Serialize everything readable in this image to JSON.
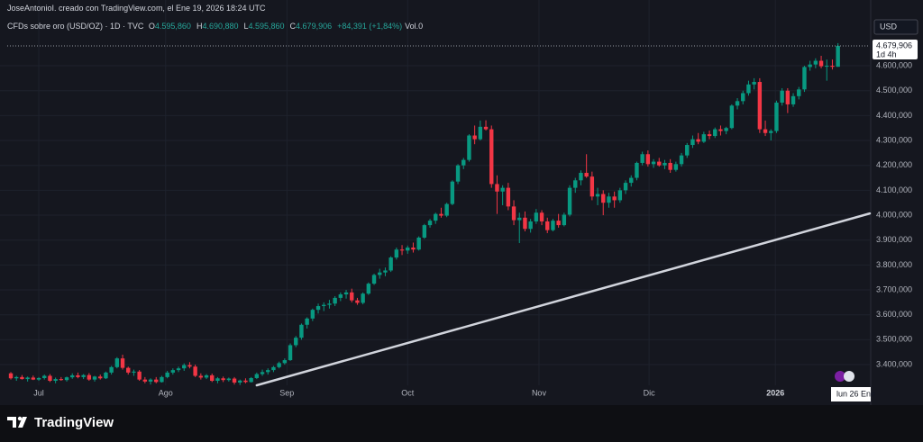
{
  "header": {
    "credit": "JoseAntonioI. creado con TradingView.com, el Ene 19, 2026 18:24 UTC",
    "symbol": "CFDs sobre oro (USD/OZ) · 1D · TVC",
    "ohlc_legend": [
      {
        "key": "O",
        "text": "4.595,860"
      },
      {
        "key": "H",
        "text": "4.690,880"
      },
      {
        "key": "L",
        "text": "4.595,860"
      },
      {
        "key": "C",
        "text": "4.679,906"
      }
    ],
    "change": "+84,391 (+1,84%)",
    "volume": "Vol.0",
    "currency": "USD"
  },
  "chart_data": {
    "type": "candlestick",
    "up_color": "#089981",
    "down_color": "#f23645",
    "xlim": [
      -0.65,
      153.7
    ],
    "ylim": [
      3317,
      4799
    ],
    "xticks": [
      {
        "value": 5,
        "label": "Jul"
      },
      {
        "value": 27.7,
        "label": "Ago"
      },
      {
        "value": 49.4,
        "label": "Sep"
      },
      {
        "value": 71,
        "label": "Oct"
      },
      {
        "value": 94.5,
        "label": "Nov"
      },
      {
        "value": 114.2,
        "label": "Dic"
      },
      {
        "value": 136.8,
        "label": "2026"
      }
    ],
    "yticks": [
      {
        "value": 3400,
        "label": "3.400,000"
      },
      {
        "value": 3500,
        "label": "3.500,000"
      },
      {
        "value": 3600,
        "label": "3.600,000"
      },
      {
        "value": 3700,
        "label": "3.700,000"
      },
      {
        "value": 3800,
        "label": "3.800,000"
      },
      {
        "value": 3900,
        "label": "3.900,000"
      },
      {
        "value": 4000,
        "label": "4.000,000"
      },
      {
        "value": 4100,
        "label": "4.100,000"
      },
      {
        "value": 4200,
        "label": "4.200,000"
      },
      {
        "value": 4300,
        "label": "4.300,000"
      },
      {
        "value": 4400,
        "label": "4.400,000"
      },
      {
        "value": 4500,
        "label": "4.500,000"
      },
      {
        "value": 4600,
        "label": "4.600,000"
      }
    ],
    "grid": true,
    "last_price": {
      "value": 4679.906,
      "label": "4.679,906",
      "countdown": "1d 4h"
    },
    "trendline": {
      "x": [
        44,
        153.7
      ],
      "y": [
        3317,
        4007
      ],
      "color": "#d1d4dc"
    },
    "crosshair_label": "lun 26 Ene",
    "ohlc": [
      [
        3365,
        3370,
        3340,
        3345
      ],
      [
        3345,
        3355,
        3335,
        3350
      ],
      [
        3350,
        3358,
        3340,
        3342
      ],
      [
        3342,
        3352,
        3332,
        3348
      ],
      [
        3348,
        3356,
        3338,
        3340
      ],
      [
        3340,
        3350,
        3335,
        3346
      ],
      [
        3346,
        3360,
        3340,
        3355
      ],
      [
        3355,
        3362,
        3330,
        3335
      ],
      [
        3335,
        3348,
        3325,
        3342
      ],
      [
        3342,
        3350,
        3335,
        3338
      ],
      [
        3338,
        3352,
        3332,
        3349
      ],
      [
        3349,
        3365,
        3343,
        3357
      ],
      [
        3357,
        3368,
        3345,
        3350
      ],
      [
        3350,
        3362,
        3342,
        3358
      ],
      [
        3358,
        3366,
        3335,
        3340
      ],
      [
        3340,
        3355,
        3332,
        3352
      ],
      [
        3352,
        3360,
        3340,
        3345
      ],
      [
        3345,
        3372,
        3342,
        3368
      ],
      [
        3368,
        3395,
        3360,
        3390
      ],
      [
        3390,
        3430,
        3385,
        3425
      ],
      [
        3425,
        3440,
        3380,
        3387
      ],
      [
        3387,
        3392,
        3360,
        3368
      ],
      [
        3368,
        3380,
        3355,
        3372
      ],
      [
        3372,
        3378,
        3335,
        3340
      ],
      [
        3340,
        3350,
        3325,
        3332
      ],
      [
        3332,
        3345,
        3320,
        3340
      ],
      [
        3340,
        3350,
        3325,
        3330
      ],
      [
        3330,
        3355,
        3328,
        3350
      ],
      [
        3350,
        3375,
        3345,
        3368
      ],
      [
        3368,
        3385,
        3360,
        3378
      ],
      [
        3378,
        3392,
        3370,
        3385
      ],
      [
        3385,
        3405,
        3375,
        3398
      ],
      [
        3398,
        3410,
        3385,
        3392
      ],
      [
        3392,
        3400,
        3350,
        3355
      ],
      [
        3355,
        3365,
        3340,
        3348
      ],
      [
        3348,
        3362,
        3342,
        3357
      ],
      [
        3357,
        3364,
        3330,
        3335
      ],
      [
        3335,
        3350,
        3325,
        3345
      ],
      [
        3345,
        3352,
        3330,
        3338
      ],
      [
        3338,
        3348,
        3332,
        3344
      ],
      [
        3344,
        3350,
        3320,
        3328
      ],
      [
        3328,
        3340,
        3318,
        3336
      ],
      [
        3336,
        3345,
        3325,
        3330
      ],
      [
        3330,
        3350,
        3328,
        3346
      ],
      [
        3346,
        3368,
        3342,
        3362
      ],
      [
        3362,
        3380,
        3355,
        3370
      ],
      [
        3370,
        3385,
        3360,
        3378
      ],
      [
        3378,
        3395,
        3370,
        3390
      ],
      [
        3390,
        3412,
        3385,
        3406
      ],
      [
        3406,
        3425,
        3400,
        3418
      ],
      [
        3418,
        3485,
        3415,
        3478
      ],
      [
        3478,
        3515,
        3470,
        3508
      ],
      [
        3508,
        3565,
        3500,
        3560
      ],
      [
        3560,
        3590,
        3545,
        3585
      ],
      [
        3585,
        3625,
        3575,
        3620
      ],
      [
        3620,
        3645,
        3605,
        3635
      ],
      [
        3635,
        3650,
        3615,
        3640
      ],
      [
        3640,
        3660,
        3625,
        3645
      ],
      [
        3645,
        3675,
        3635,
        3668
      ],
      [
        3668,
        3690,
        3655,
        3682
      ],
      [
        3682,
        3700,
        3665,
        3690
      ],
      [
        3690,
        3705,
        3650,
        3658
      ],
      [
        3658,
        3668,
        3640,
        3648
      ],
      [
        3648,
        3690,
        3642,
        3685
      ],
      [
        3685,
        3730,
        3680,
        3725
      ],
      [
        3725,
        3765,
        3720,
        3760
      ],
      [
        3760,
        3785,
        3745,
        3770
      ],
      [
        3770,
        3790,
        3755,
        3778
      ],
      [
        3778,
        3835,
        3772,
        3830
      ],
      [
        3830,
        3870,
        3822,
        3862
      ],
      [
        3862,
        3880,
        3840,
        3858
      ],
      [
        3858,
        3878,
        3845,
        3870
      ],
      [
        3870,
        3890,
        3850,
        3862
      ],
      [
        3862,
        3915,
        3858,
        3910
      ],
      [
        3910,
        3965,
        3905,
        3960
      ],
      [
        3960,
        3985,
        3950,
        3978
      ],
      [
        3978,
        4010,
        3965,
        4005
      ],
      [
        4005,
        4030,
        3990,
        3998
      ],
      [
        3998,
        4050,
        3992,
        4045
      ],
      [
        4045,
        4140,
        4040,
        4135
      ],
      [
        4135,
        4205,
        4125,
        4200
      ],
      [
        4200,
        4230,
        4185,
        4222
      ],
      [
        4222,
        4325,
        4215,
        4320
      ],
      [
        4320,
        4360,
        4285,
        4305
      ],
      [
        4305,
        4380,
        4300,
        4355
      ],
      [
        4355,
        4381,
        4340,
        4345
      ],
      [
        4345,
        4360,
        4110,
        4125
      ],
      [
        4125,
        4160,
        4005,
        4095
      ],
      [
        4095,
        4120,
        4040,
        4110
      ],
      [
        4110,
        4130,
        4020,
        4035
      ],
      [
        4035,
        4060,
        3960,
        3980
      ],
      [
        3980,
        4010,
        3888,
        3990
      ],
      [
        3990,
        4015,
        3935,
        3945
      ],
      [
        3945,
        3985,
        3930,
        3975
      ],
      [
        3975,
        4025,
        3965,
        4010
      ],
      [
        4010,
        4020,
        3960,
        3975
      ],
      [
        3975,
        3990,
        3928,
        3940
      ],
      [
        3940,
        3985,
        3935,
        3978
      ],
      [
        3978,
        4005,
        3950,
        3960
      ],
      [
        3960,
        4010,
        3955,
        4002
      ],
      [
        4002,
        4120,
        3995,
        4110
      ],
      [
        4110,
        4150,
        4090,
        4140
      ],
      [
        4140,
        4180,
        4120,
        4170
      ],
      [
        4170,
        4245,
        4150,
        4155
      ],
      [
        4155,
        4175,
        4060,
        4075
      ],
      [
        4075,
        4110,
        4040,
        4085
      ],
      [
        4085,
        4100,
        4000,
        4050
      ],
      [
        4050,
        4090,
        4030,
        4075
      ],
      [
        4075,
        4095,
        4030,
        4060
      ],
      [
        4060,
        4110,
        4050,
        4100
      ],
      [
        4100,
        4140,
        4085,
        4130
      ],
      [
        4130,
        4160,
        4115,
        4150
      ],
      [
        4150,
        4215,
        4140,
        4210
      ],
      [
        4210,
        4255,
        4200,
        4245
      ],
      [
        4245,
        4260,
        4195,
        4205
      ],
      [
        4205,
        4225,
        4190,
        4215
      ],
      [
        4215,
        4230,
        4195,
        4200
      ],
      [
        4200,
        4222,
        4185,
        4210
      ],
      [
        4210,
        4225,
        4170,
        4182
      ],
      [
        4182,
        4215,
        4175,
        4205
      ],
      [
        4205,
        4250,
        4195,
        4240
      ],
      [
        4240,
        4290,
        4230,
        4282
      ],
      [
        4282,
        4320,
        4270,
        4305
      ],
      [
        4305,
        4330,
        4285,
        4295
      ],
      [
        4295,
        4335,
        4290,
        4325
      ],
      [
        4325,
        4340,
        4305,
        4318
      ],
      [
        4318,
        4352,
        4310,
        4345
      ],
      [
        4345,
        4360,
        4320,
        4338
      ],
      [
        4338,
        4355,
        4325,
        4350
      ],
      [
        4350,
        4445,
        4345,
        4440
      ],
      [
        4440,
        4470,
        4425,
        4458
      ],
      [
        4458,
        4500,
        4445,
        4490
      ],
      [
        4490,
        4540,
        4480,
        4525
      ],
      [
        4525,
        4550,
        4505,
        4535
      ],
      [
        4535,
        4550,
        4330,
        4345
      ],
      [
        4345,
        4380,
        4318,
        4330
      ],
      [
        4330,
        4345,
        4300,
        4338
      ],
      [
        4338,
        4460,
        4330,
        4452
      ],
      [
        4452,
        4510,
        4440,
        4500
      ],
      [
        4500,
        4510,
        4410,
        4445
      ],
      [
        4445,
        4490,
        4435,
        4478
      ],
      [
        4478,
        4515,
        4465,
        4505
      ],
      [
        4505,
        4600,
        4495,
        4595
      ],
      [
        4595,
        4620,
        4580,
        4605
      ],
      [
        4605,
        4630,
        4590,
        4620
      ],
      [
        4620,
        4640,
        4590,
        4598
      ],
      [
        4598,
        4625,
        4540,
        4600
      ],
      [
        4600,
        4625,
        4585,
        4595.86
      ],
      [
        4595.86,
        4690.88,
        4595.86,
        4679.906
      ]
    ]
  },
  "footer": {
    "brand": "TradingView"
  }
}
